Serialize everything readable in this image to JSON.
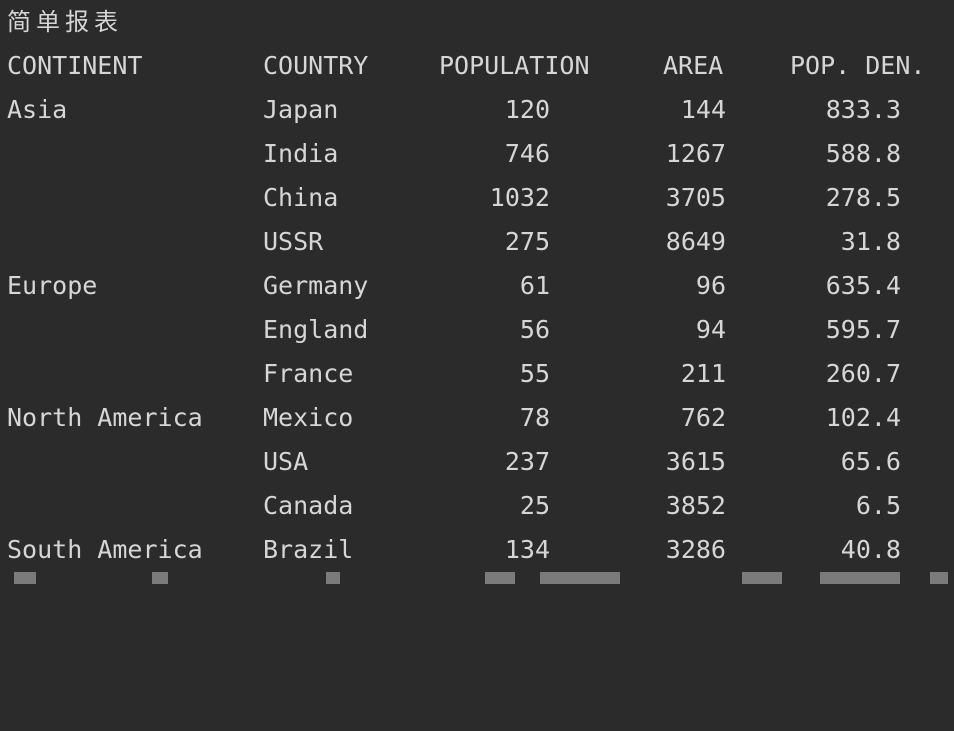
{
  "report": {
    "title": "简单报表",
    "headers": {
      "continent": "CONTINENT",
      "country": "COUNTRY",
      "population": "POPULATION",
      "area": "AREA",
      "density": "POP. DEN."
    },
    "rows": [
      {
        "continent": "Asia",
        "country": "Japan",
        "population": "120",
        "area": "144",
        "density": "833.3"
      },
      {
        "continent": "",
        "country": "India",
        "population": "746",
        "area": "1267",
        "density": "588.8"
      },
      {
        "continent": "",
        "country": "China",
        "population": "1032",
        "area": "3705",
        "density": "278.5"
      },
      {
        "continent": "",
        "country": "USSR",
        "population": "275",
        "area": "8649",
        "density": "31.8"
      },
      {
        "continent": "Europe",
        "country": "Germany",
        "population": "61",
        "area": "96",
        "density": "635.4"
      },
      {
        "continent": "",
        "country": "England",
        "population": "56",
        "area": "94",
        "density": "595.7"
      },
      {
        "continent": "",
        "country": "France",
        "population": "55",
        "area": "211",
        "density": "260.7"
      },
      {
        "continent": "North America",
        "country": "Mexico",
        "population": "78",
        "area": "762",
        "density": "102.4"
      },
      {
        "continent": "",
        "country": "USA",
        "population": "237",
        "area": "3615",
        "density": "65.6"
      },
      {
        "continent": "",
        "country": "Canada",
        "population": "25",
        "area": "3852",
        "density": "6.5"
      },
      {
        "continent": "South America",
        "country": "Brazil",
        "population": "134",
        "area": "3286",
        "density": "40.8"
      }
    ]
  },
  "colors": {
    "background": "#2b2b2b",
    "text": "#d6d6d6"
  }
}
